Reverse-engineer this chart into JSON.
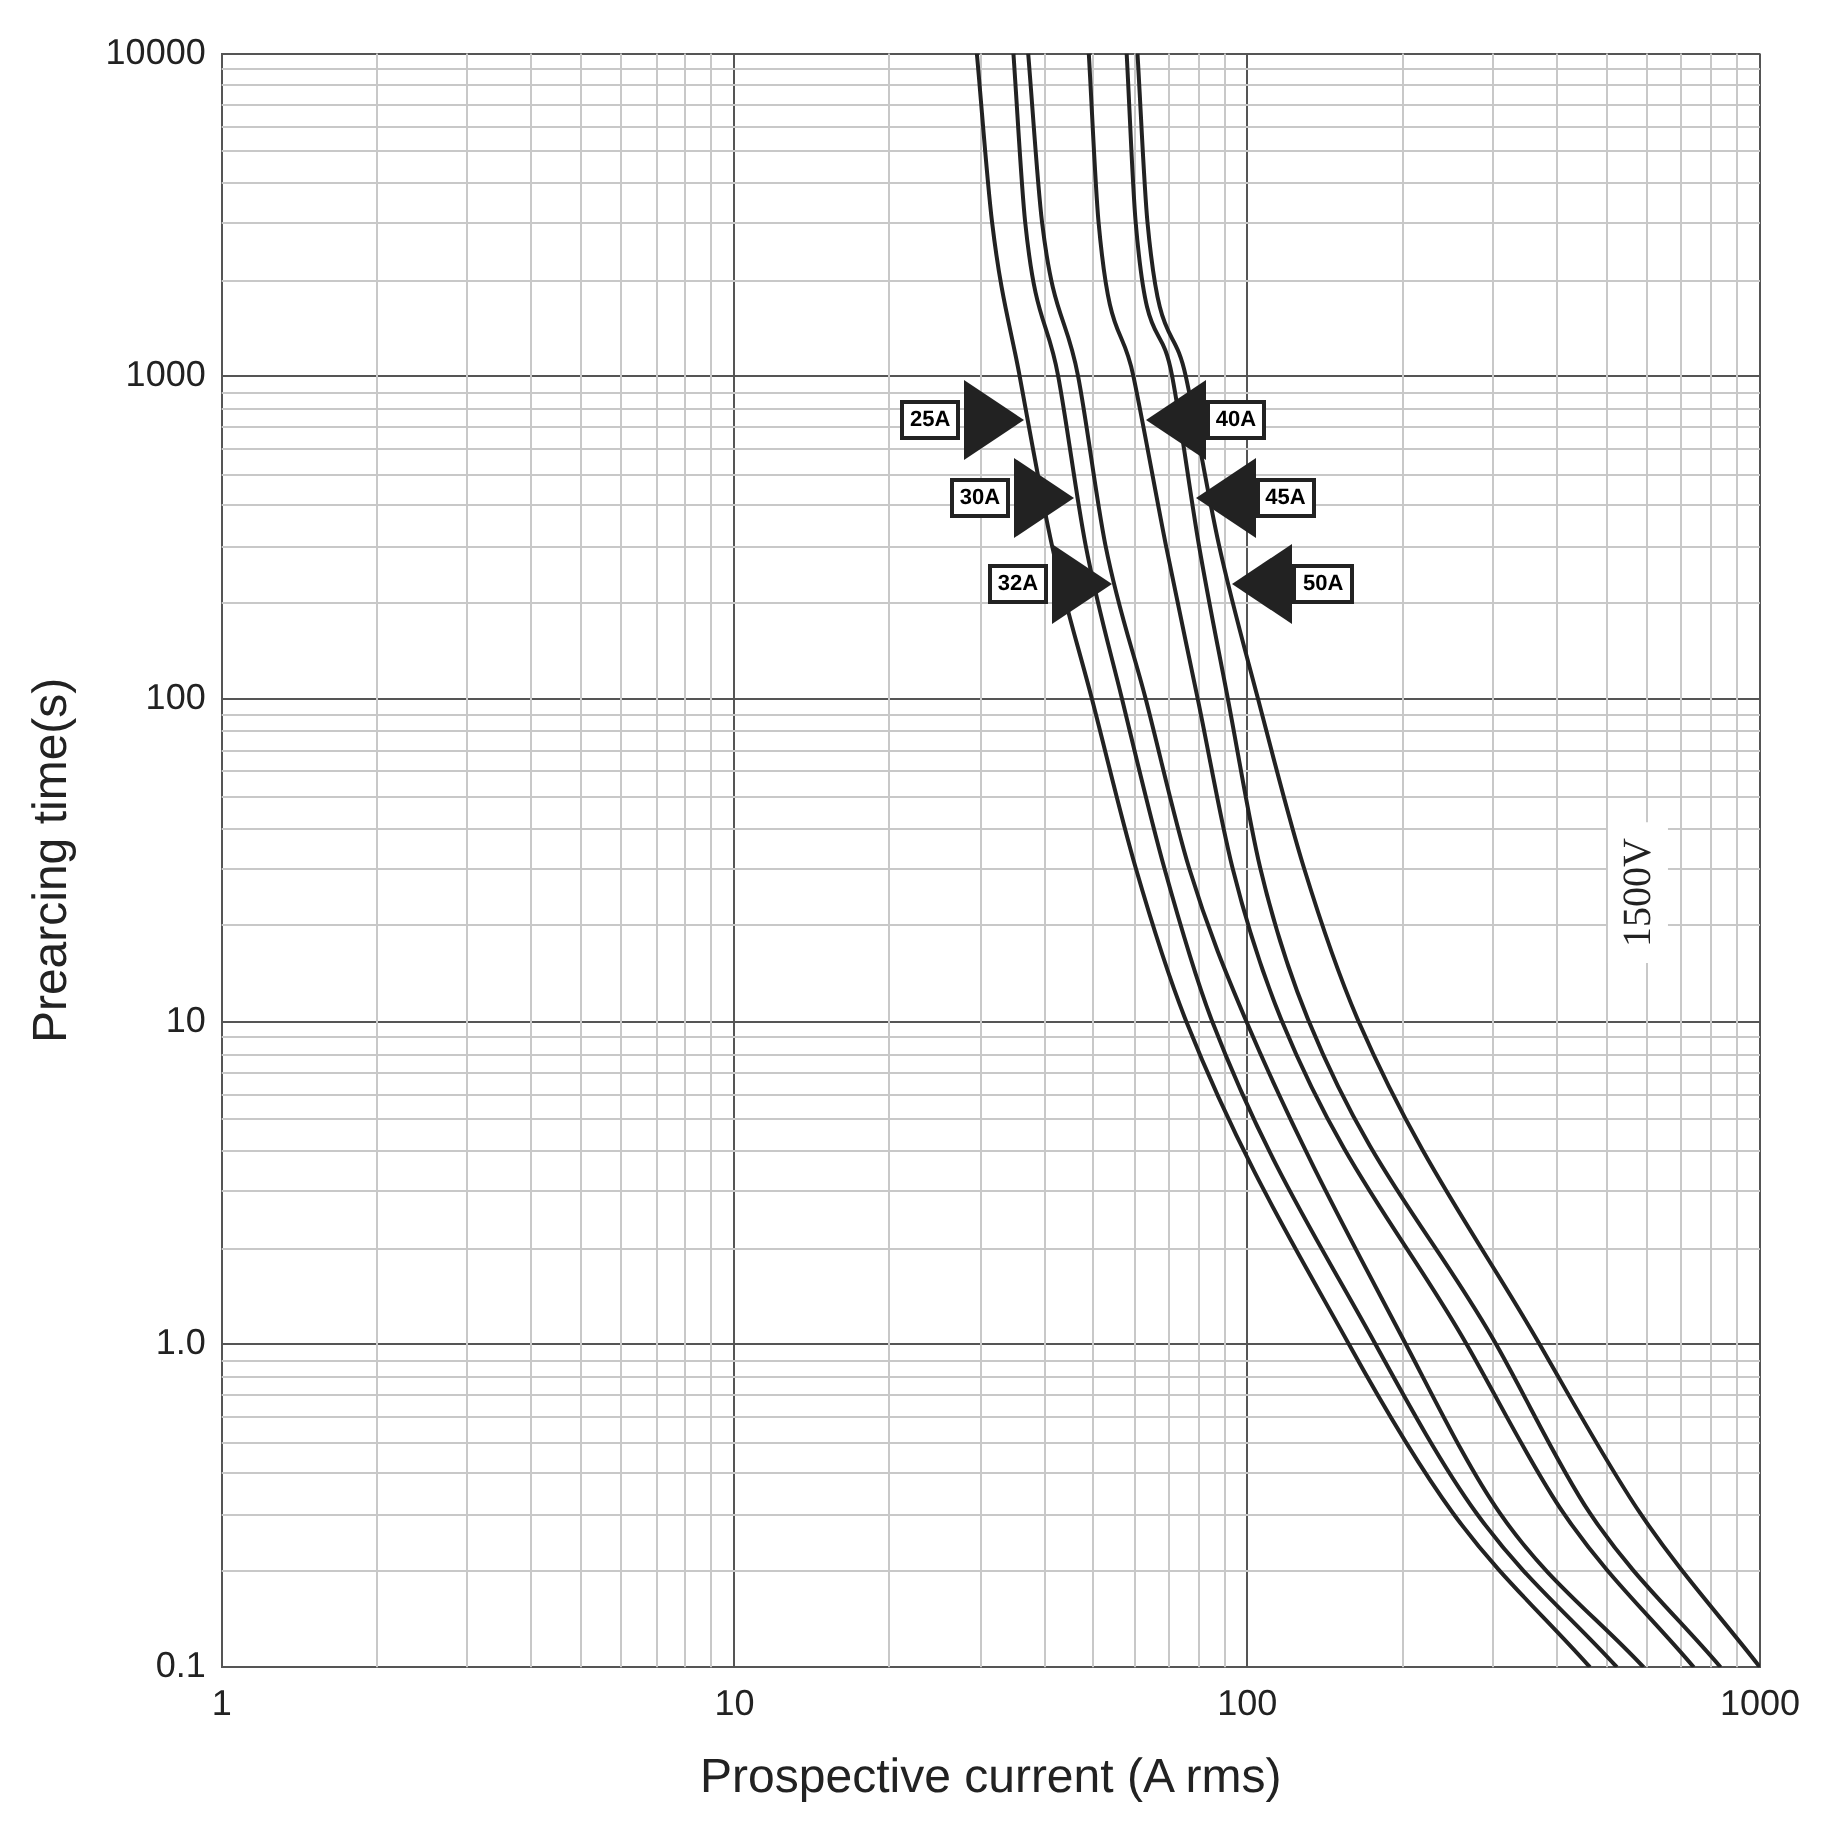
{
  "chart_data": {
    "type": "line",
    "xlabel": "Prospective current (A rms)",
    "ylabel": "Prearcing time(s)",
    "log": "xy",
    "grid": true,
    "legend": false,
    "marker": "none",
    "line_style": "solid",
    "xlim": [
      1,
      1000
    ],
    "xticks": [
      1,
      10,
      100,
      1000
    ],
    "ylim": [
      0.1,
      10000
    ],
    "yticks": [
      0.1,
      {
        "value": 1,
        "label": "1.0"
      },
      10,
      100,
      1000,
      10000
    ],
    "annotations": [
      "1500V"
    ],
    "series": [
      {
        "name": "25A",
        "color": "#222222",
        "x": [
          29.7,
          31.8,
          36.0,
          41.6,
          49.8,
          60.6,
          76.1,
          158,
          252,
          466
        ],
        "values": [
          10000,
          3000,
          1000,
          300,
          100,
          30,
          10,
          1,
          0.3,
          0.1
        ]
      },
      {
        "name": "30A",
        "color": "#222222",
        "x": [
          35.0,
          36.9,
          42.8,
          48.4,
          57.0,
          68.9,
          85.5,
          178,
          280,
          526
        ],
        "values": [
          10000,
          3000,
          1000,
          300,
          100,
          30,
          10,
          1,
          0.3,
          0.1
        ]
      },
      {
        "name": "32A",
        "color": "#222222",
        "x": [
          37.4,
          39.8,
          46.8,
          52.9,
          63.4,
          77.0,
          99.7,
          204,
          311,
          593
        ],
        "values": [
          10000,
          3000,
          1000,
          300,
          100,
          30,
          10,
          1,
          0.3,
          0.1
        ]
      },
      {
        "name": "40A",
        "color": "#222222",
        "x": [
          49.1,
          51.3,
          60.0,
          69.4,
          80.1,
          93.6,
          117,
          268,
          414,
          743
        ],
        "values": [
          10000,
          3000,
          1000,
          300,
          100,
          30,
          10,
          1,
          0.3,
          0.1
        ]
      },
      {
        "name": "45A",
        "color": "#222222",
        "x": [
          58.2,
          60.6,
          71.4,
          80.5,
          91.7,
          106,
          132,
          306,
          466,
          838
        ],
        "values": [
          10000,
          3000,
          1000,
          300,
          100,
          30,
          10,
          1,
          0.3,
          0.1
        ]
      },
      {
        "name": "50A",
        "color": "#222222",
        "x": [
          61.1,
          63.9,
          75.9,
          88.1,
          105,
          129,
          165,
          372,
          584,
          1000
        ],
        "values": [
          10000,
          3000,
          1000,
          300,
          100,
          30,
          10,
          1,
          0.3,
          0.1
        ]
      }
    ]
  }
}
